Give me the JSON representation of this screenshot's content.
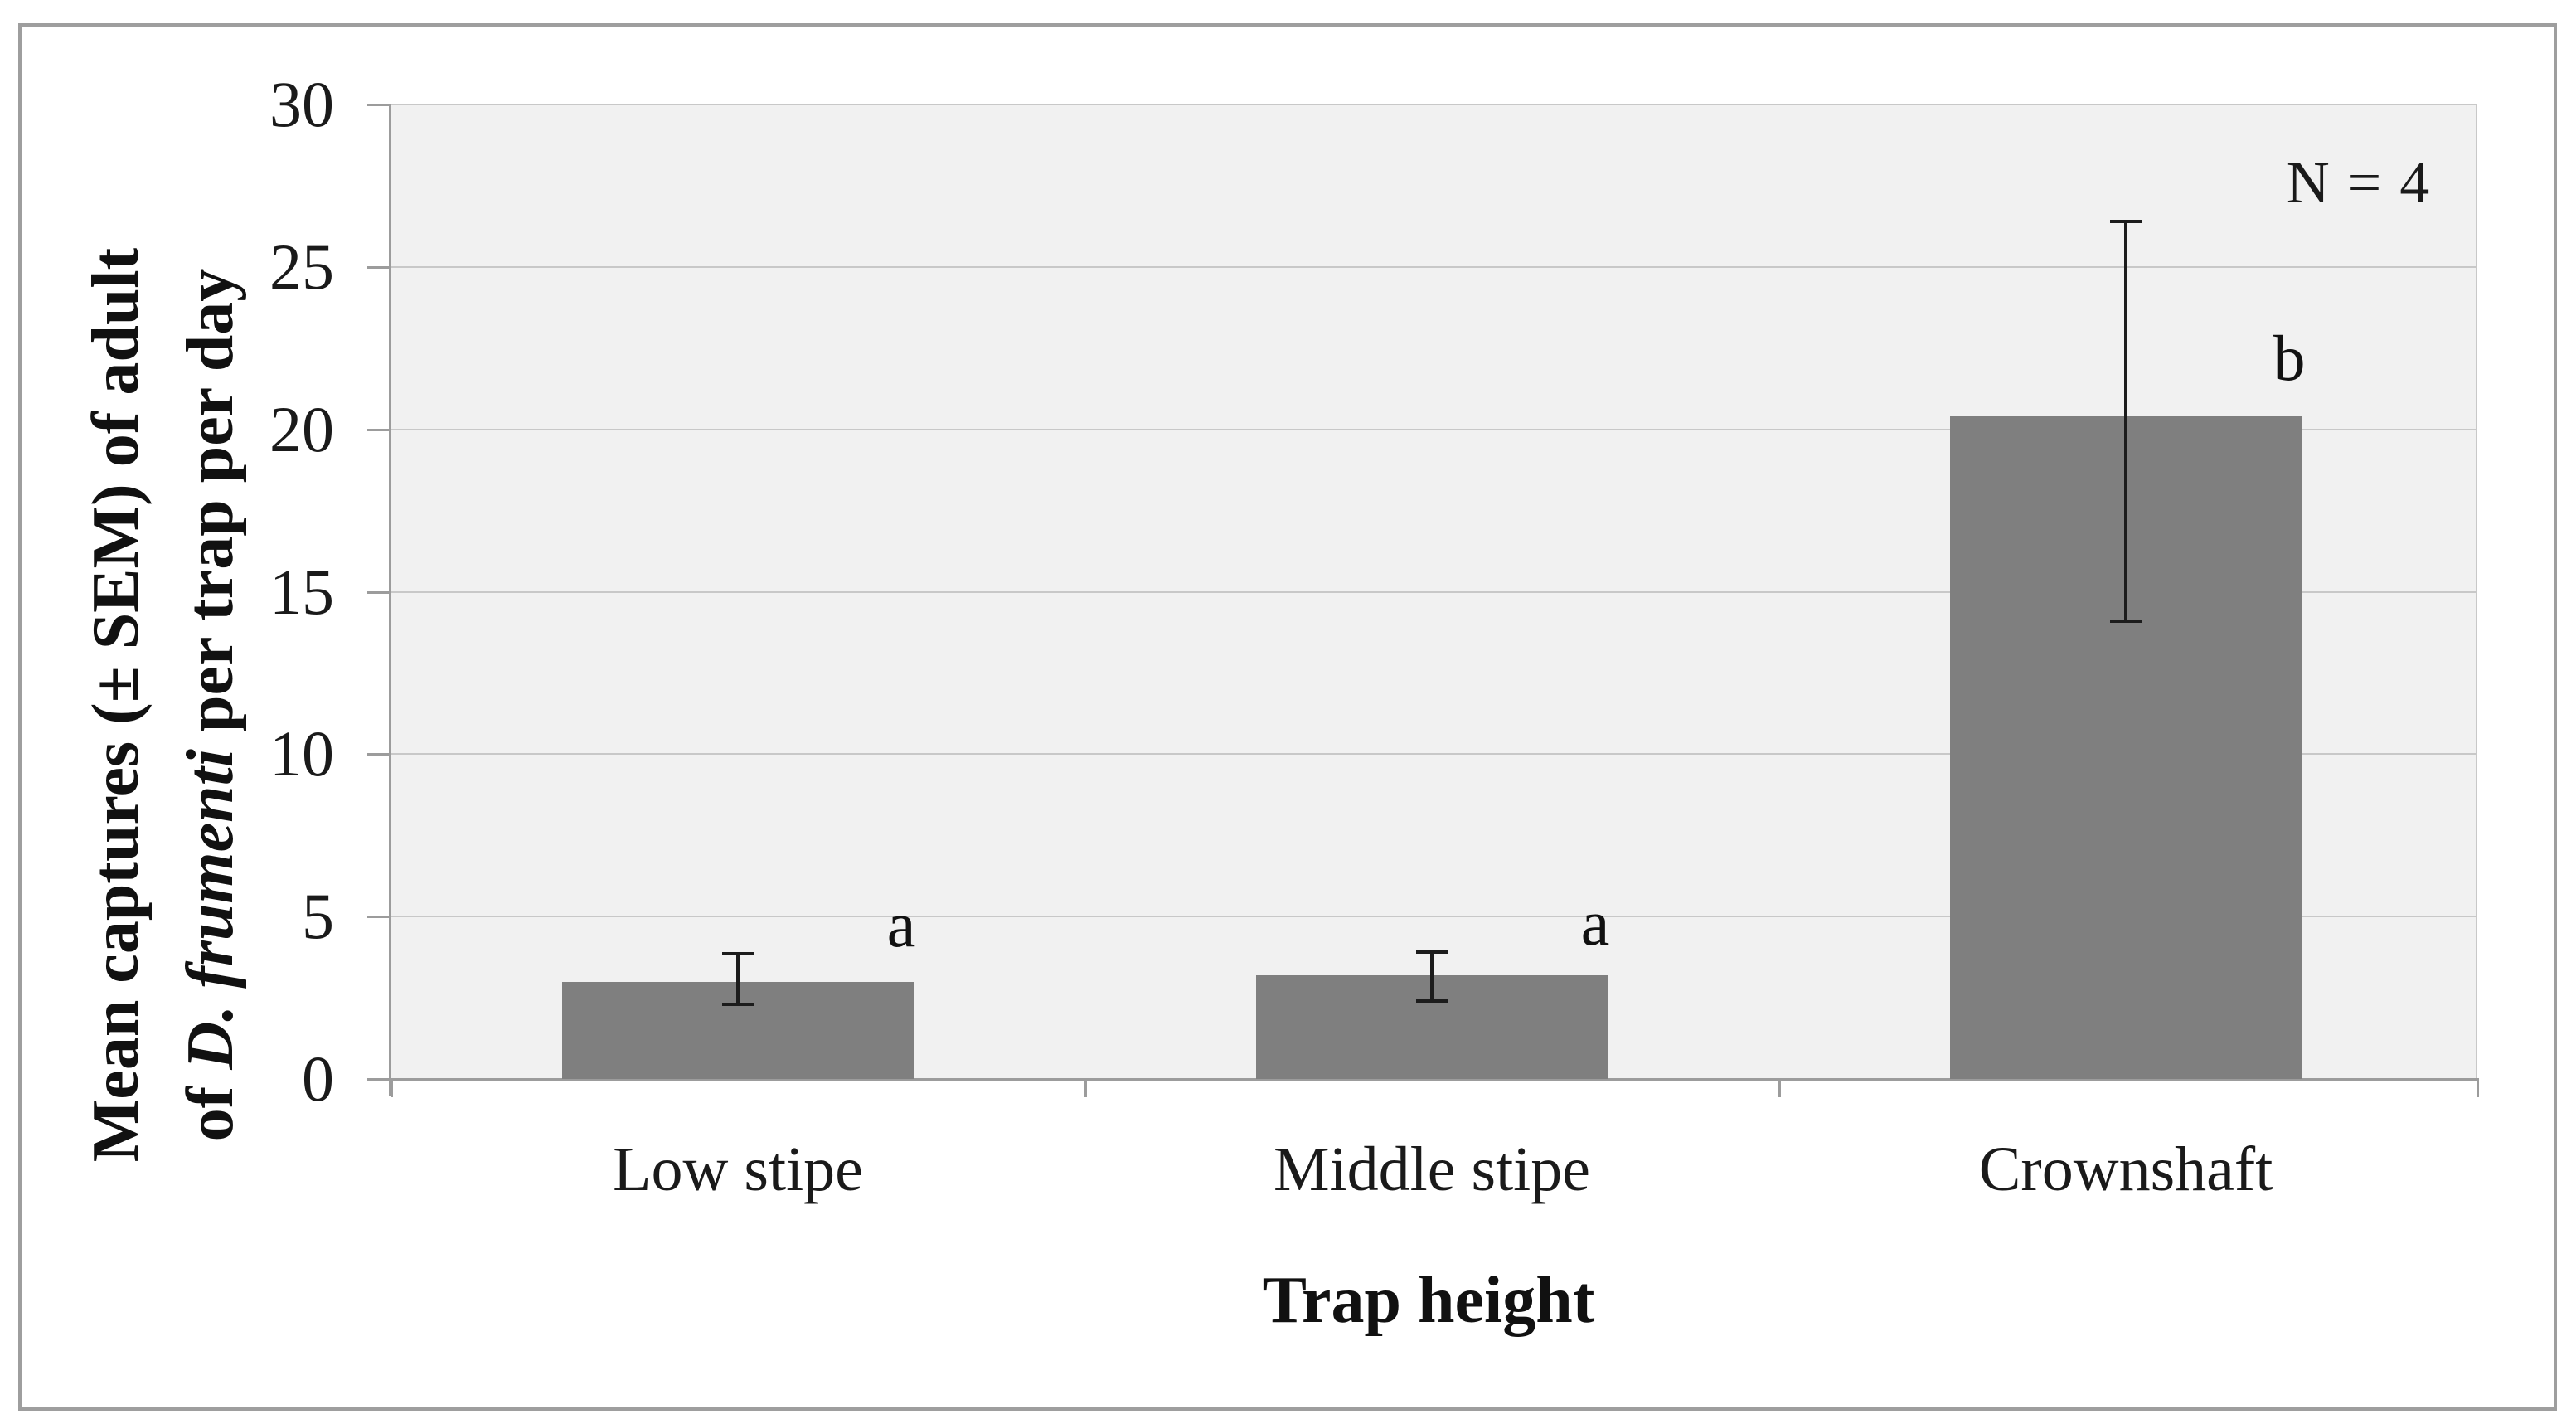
{
  "chart_data": {
    "type": "bar",
    "title": "",
    "xlabel": "Trap height",
    "ylabel_line1": "Mean captures (± SEM) of adult",
    "ylabel_line2_prefix": "of ",
    "ylabel_line2_italic": "D. frumenti",
    "ylabel_line2_suffix": " per trap per day",
    "categories": [
      "Low stipe",
      "Middle stipe",
      "Crownshaft"
    ],
    "values": [
      3.0,
      3.2,
      20.4
    ],
    "error_low": [
      2.3,
      2.4,
      14.1
    ],
    "error_high": [
      3.85,
      3.9,
      26.4
    ],
    "sig_letters": [
      "a",
      "a",
      "b"
    ],
    "sig_letter_y": [
      4.75,
      4.8,
      22.2
    ],
    "n_label": "N = 4",
    "ylim": [
      0,
      30
    ],
    "ytick_step": 5,
    "yticks": [
      "0",
      "5",
      "10",
      "15",
      "20",
      "25",
      "30"
    ],
    "grid": true,
    "legend": "none",
    "bar_color": "#7f7f7f",
    "plot_bg": "#f1f1f1",
    "gridline_color": "#c8c8c8",
    "axis_color": "#9c9c9c",
    "error_bar_color": "#1c1c1c"
  }
}
